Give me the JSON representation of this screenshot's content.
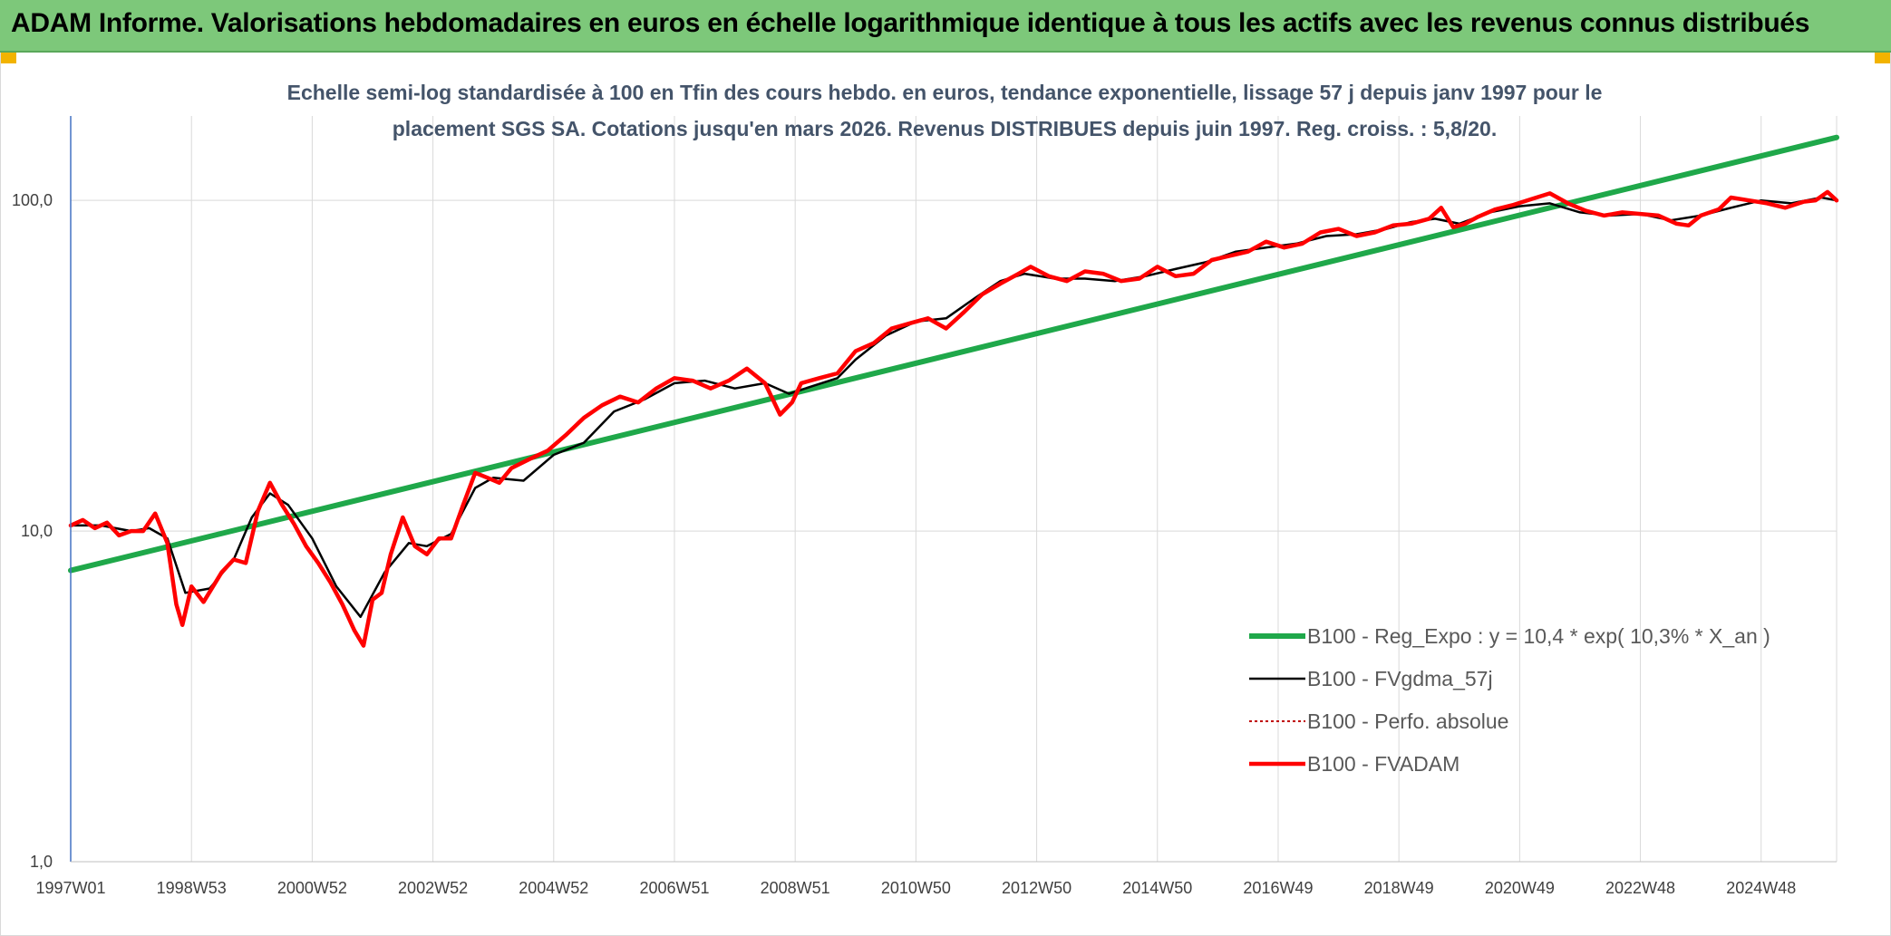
{
  "banner": {
    "title": "ADAM Informe. Valorisations hebdomadaires en euros en échelle logarithmique identique à tous les actifs avec les revenus connus distribués"
  },
  "colors": {
    "banner_bg": "#7dc87a",
    "corner_accent": "#f2b300",
    "reg_expo": "#1fa84a",
    "fvgdma": "#000000",
    "perfo": "#c00000",
    "fvadam": "#ff0000"
  },
  "chart_data": {
    "type": "line",
    "title_lines": [
      "Echelle semi-log standardisée à 100 en Tfin des cours hebdo. en euros, tendance exponentielle, lissage 57 j depuis janv 1997 pour le",
      "placement SGS SA. Cotations jusqu'en mars 2026. Revenus DISTRIBUES depuis juin 1997. Reg. croiss. : 5,8/20."
    ],
    "yscale": "log",
    "ylim": [
      1,
      180
    ],
    "xlim": [
      1997.0,
      2026.25
    ],
    "grid": true,
    "legend_position": "right",
    "x_tick_labels": [
      "1997W01",
      "1998W53",
      "2000W52",
      "2002W52",
      "2004W52",
      "2006W51",
      "2008W51",
      "2010W50",
      "2012W50",
      "2014W50",
      "2016W49",
      "2018W49",
      "2020W49",
      "2022W48",
      "2024W48"
    ],
    "x_ticks": [
      1997.0,
      1999.0,
      2001.0,
      2003.0,
      2005.0,
      2007.0,
      2009.0,
      2011.0,
      2013.0,
      2015.0,
      2017.0,
      2019.0,
      2021.0,
      2023.0,
      2025.0
    ],
    "y_tick_labels": [
      "1,0",
      "10,0",
      "100,0"
    ],
    "y_ticks": [
      1,
      10,
      100
    ],
    "series": [
      {
        "name": "B100 - Reg_Expo : y = 10,4 * exp( 10,3% *  X_an )",
        "color": "#1fa84a",
        "x": [
          1997.0,
          2026.25
        ],
        "values": [
          7.6,
          155
        ]
      },
      {
        "name": "B100 - FVgdma_57j",
        "color": "#000000",
        "x": [
          1997.0,
          1997.5,
          1998.0,
          1998.3,
          1998.6,
          1998.9,
          1999.3,
          1999.7,
          2000.0,
          2000.3,
          2000.6,
          2001.0,
          2001.4,
          2001.8,
          2002.2,
          2002.6,
          2002.9,
          2003.3,
          2003.7,
          2004.0,
          2004.5,
          2005.0,
          2005.5,
          2006.0,
          2006.5,
          2007.0,
          2007.5,
          2008.0,
          2008.5,
          2008.9,
          2009.3,
          2009.7,
          2010.0,
          2010.5,
          2011.0,
          2011.5,
          2012.0,
          2012.4,
          2012.8,
          2013.3,
          2013.8,
          2014.3,
          2014.8,
          2015.3,
          2015.8,
          2016.3,
          2016.8,
          2017.3,
          2017.8,
          2018.3,
          2018.8,
          2019.2,
          2019.6,
          2020.0,
          2020.5,
          2021.0,
          2021.5,
          2022.0,
          2022.5,
          2023.0,
          2023.5,
          2024.0,
          2024.5,
          2025.0,
          2025.5,
          2026.0,
          2026.25
        ],
        "values": [
          10.4,
          10.4,
          10.0,
          10.2,
          9.5,
          6.5,
          6.7,
          8.2,
          11.0,
          13.0,
          12.0,
          9.5,
          6.8,
          5.5,
          7.5,
          9.2,
          9.0,
          9.8,
          13.5,
          14.5,
          14.2,
          17.0,
          18.5,
          23.0,
          25.0,
          28.0,
          28.5,
          27.0,
          28.0,
          26.0,
          27.5,
          29.0,
          33.0,
          39.0,
          43.0,
          44.0,
          51.0,
          57.0,
          60.0,
          58.0,
          58.0,
          57.0,
          59.0,
          62.0,
          65.0,
          70.0,
          72.0,
          74.0,
          78.0,
          79.0,
          82.0,
          86.0,
          88.0,
          85.0,
          92.0,
          96.0,
          98.0,
          92.0,
          90.0,
          91.0,
          87.0,
          90.0,
          95.0,
          100.0,
          98.0,
          102.0,
          100.0
        ]
      },
      {
        "name": "B100 - Perfo. absolue",
        "color": "#c00000",
        "x": [],
        "values": []
      },
      {
        "name": "B100 - FVADAM",
        "color": "#ff0000",
        "x": [
          1997.0,
          1997.2,
          1997.4,
          1997.6,
          1997.8,
          1998.0,
          1998.2,
          1998.4,
          1998.6,
          1998.75,
          1998.85,
          1999.0,
          1999.2,
          1999.5,
          1999.7,
          1999.9,
          2000.1,
          2000.3,
          2000.5,
          2000.7,
          2000.9,
          2001.1,
          2001.3,
          2001.5,
          2001.7,
          2001.85,
          2002.0,
          2002.15,
          2002.3,
          2002.5,
          2002.7,
          2002.9,
          2003.1,
          2003.3,
          2003.5,
          2003.7,
          2003.9,
          2004.1,
          2004.3,
          2004.6,
          2004.9,
          2005.2,
          2005.5,
          2005.8,
          2006.1,
          2006.4,
          2006.7,
          2007.0,
          2007.3,
          2007.6,
          2007.9,
          2008.2,
          2008.5,
          2008.75,
          2008.95,
          2009.1,
          2009.4,
          2009.7,
          2010.0,
          2010.3,
          2010.6,
          2010.9,
          2011.2,
          2011.5,
          2011.8,
          2012.1,
          2012.4,
          2012.7,
          2012.9,
          2013.2,
          2013.5,
          2013.8,
          2014.1,
          2014.4,
          2014.7,
          2015.0,
          2015.3,
          2015.6,
          2015.9,
          2016.2,
          2016.5,
          2016.8,
          2017.1,
          2017.4,
          2017.7,
          2018.0,
          2018.3,
          2018.6,
          2018.9,
          2019.2,
          2019.5,
          2019.7,
          2019.9,
          2020.1,
          2020.3,
          2020.6,
          2020.9,
          2021.2,
          2021.5,
          2021.8,
          2022.1,
          2022.4,
          2022.7,
          2023.0,
          2023.3,
          2023.6,
          2023.8,
          2024.0,
          2024.3,
          2024.5,
          2024.8,
          2025.1,
          2025.4,
          2025.7,
          2025.9,
          2026.1,
          2026.25
        ],
        "values": [
          10.4,
          10.8,
          10.2,
          10.6,
          9.7,
          10.0,
          10.0,
          11.3,
          9.2,
          6.0,
          5.2,
          6.8,
          6.1,
          7.5,
          8.2,
          8.0,
          11.5,
          14.0,
          12.0,
          10.5,
          9.0,
          8.0,
          7.0,
          6.0,
          5.0,
          4.5,
          6.2,
          6.5,
          8.5,
          11.0,
          9.0,
          8.5,
          9.5,
          9.5,
          12.0,
          15.0,
          14.5,
          14.0,
          15.5,
          16.5,
          17.5,
          19.5,
          22.0,
          24.0,
          25.5,
          24.5,
          27.0,
          29.0,
          28.5,
          27.0,
          28.5,
          31.0,
          28.0,
          22.5,
          24.5,
          28.0,
          29.0,
          30.0,
          35.0,
          37.0,
          41.0,
          42.5,
          44.0,
          41.0,
          46.0,
          52.0,
          56.0,
          60.0,
          63.0,
          59.0,
          57.0,
          61.0,
          60.0,
          57.0,
          58.0,
          63.0,
          59.0,
          60.0,
          66.0,
          68.0,
          70.0,
          75.0,
          72.0,
          74.0,
          80.0,
          82.0,
          78.0,
          80.0,
          84.0,
          85.0,
          88.0,
          95.0,
          83.0,
          85.0,
          89.0,
          94.0,
          97.0,
          101.0,
          105.0,
          98.0,
          93.0,
          90.0,
          92.0,
          91.0,
          90.0,
          85.0,
          84.0,
          90.0,
          94.0,
          102.0,
          100.0,
          98.0,
          95.0,
          99.0,
          100.0,
          106.0,
          100.0
        ]
      }
    ]
  }
}
